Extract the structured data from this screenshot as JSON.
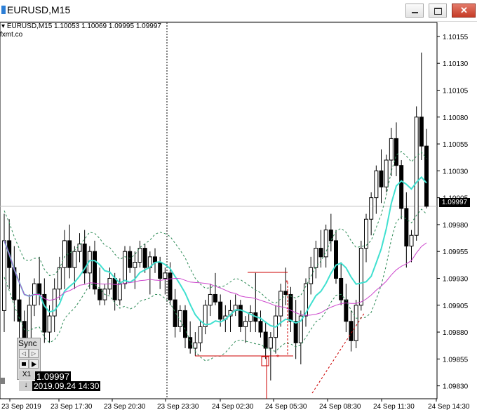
{
  "window": {
    "title": "EURUSD,M15"
  },
  "header": {
    "symbol_info": "EURUSD,M15  1.10053 1.10069 1.09995 1.09997",
    "watermark": "fxmt.co"
  },
  "price_axis": {
    "labels": [
      "1.10155",
      "1.10130",
      "1.10105",
      "1.10080",
      "1.10055",
      "1.10030",
      "1.10005",
      "1.09980",
      "1.09955",
      "1.09930",
      "1.09905",
      "1.09880",
      "1.09855",
      "1.09830"
    ],
    "current_price": "1.09997"
  },
  "time_axis": {
    "labels": [
      "23 Sep 2019",
      "23 Sep 17:30",
      "23 Sep 20:30",
      "23 Sep 23:30",
      "24 Sep 02:30",
      "24 Sep 05:30",
      "24 Sep 08:30",
      "24 Sep 11:30",
      "24 Sep 14:30"
    ]
  },
  "tester": {
    "sync_label": "Sync",
    "speed_label": "X1",
    "down_arrow": "↓",
    "crosshair_price": "1.09997",
    "crosshair_time": "2019.09.24 14:30"
  },
  "colors": {
    "bull": "#ffffff",
    "bear": "#000000",
    "ma_fast": "#40e0d0",
    "ma_slow": "#cc44cc",
    "bands": "#2e8b57",
    "orders": "#cc0000",
    "crosshair": "#000000"
  },
  "chart_data": {
    "type": "candlestick",
    "symbol": "EURUSD",
    "timeframe": "M15",
    "y_range": [
      1.09818,
      1.10168
    ],
    "last_bar": {
      "open": 1.10053,
      "high": 1.10069,
      "low": 1.09995,
      "close": 1.09997
    },
    "candles": [
      [
        1.099,
        1.0999,
        1.0988,
        1.09965
      ],
      [
        1.09965,
        1.09985,
        1.0992,
        1.0994
      ],
      [
        1.0994,
        1.0996,
        1.0989,
        1.0991
      ],
      [
        1.0991,
        1.09935,
        1.0986,
        1.0989
      ],
      [
        1.0989,
        1.099,
        1.0985,
        1.0987
      ],
      [
        1.0987,
        1.09915,
        1.0986,
        1.09905
      ],
      [
        1.09905,
        1.0993,
        1.09895,
        1.09925
      ],
      [
        1.09925,
        1.0995,
        1.09905,
        1.09915
      ],
      [
        1.09915,
        1.0993,
        1.0987,
        1.0988
      ],
      [
        1.0988,
        1.09905,
        1.0987,
        1.09895
      ],
      [
        1.09895,
        1.0993,
        1.0988,
        1.0992
      ],
      [
        1.0992,
        1.0995,
        1.0991,
        1.0994
      ],
      [
        1.0994,
        1.09975,
        1.0992,
        1.09965
      ],
      [
        1.09965,
        1.0998,
        1.0993,
        1.0994
      ],
      [
        1.0994,
        1.0996,
        1.0992,
        1.09955
      ],
      [
        1.09955,
        1.09972,
        1.09945,
        1.09962
      ],
      [
        1.09962,
        1.09975,
        1.09925,
        1.09935
      ],
      [
        1.09935,
        1.0996,
        1.0992,
        1.09955
      ],
      [
        1.09955,
        1.09965,
        1.09915,
        1.0992
      ],
      [
        1.0992,
        1.0994,
        1.09905,
        1.0991
      ],
      [
        1.0991,
        1.09925,
        1.09905,
        1.0992
      ],
      [
        1.0992,
        1.0994,
        1.09915,
        1.0993
      ],
      [
        1.0993,
        1.09935,
        1.099,
        1.0991
      ],
      [
        1.0991,
        1.0993,
        1.09905,
        1.09925
      ],
      [
        1.09925,
        1.0996,
        1.0992,
        1.09955
      ],
      [
        1.09955,
        1.0996,
        1.09935,
        1.0994
      ],
      [
        1.0994,
        1.09955,
        1.0992,
        1.09945
      ],
      [
        1.09945,
        1.09965,
        1.0994,
        1.09958
      ],
      [
        1.09958,
        1.09962,
        1.09935,
        1.0994
      ],
      [
        1.0994,
        1.09955,
        1.09915,
        1.0995
      ],
      [
        1.0995,
        1.09958,
        1.09935,
        1.09945
      ],
      [
        1.09945,
        1.0995,
        1.0992,
        1.0993
      ],
      [
        1.0993,
        1.0994,
        1.09915,
        1.09935
      ],
      [
        1.09935,
        1.09945,
        1.09905,
        1.0991
      ],
      [
        1.0991,
        1.0992,
        1.09875,
        1.09885
      ],
      [
        1.09885,
        1.09905,
        1.0988,
        1.099
      ],
      [
        1.099,
        1.09905,
        1.09865,
        1.09875
      ],
      [
        1.09875,
        1.0989,
        1.0986,
        1.09865
      ],
      [
        1.09865,
        1.0988,
        1.09858,
        1.0987
      ],
      [
        1.0987,
        1.0989,
        1.09862,
        1.09885
      ],
      [
        1.09885,
        1.0991,
        1.09878,
        1.09905
      ],
      [
        1.09905,
        1.09925,
        1.09895,
        1.09915
      ],
      [
        1.09915,
        1.09935,
        1.09905,
        1.09908
      ],
      [
        1.09908,
        1.09915,
        1.09885,
        1.09892
      ],
      [
        1.09892,
        1.09905,
        1.0988,
        1.09895
      ],
      [
        1.09895,
        1.0991,
        1.0988,
        1.099
      ],
      [
        1.099,
        1.09915,
        1.09895,
        1.09905
      ],
      [
        1.09905,
        1.0991,
        1.0988,
        1.09885
      ],
      [
        1.09885,
        1.09895,
        1.0987,
        1.0989
      ],
      [
        1.0989,
        1.09905,
        1.0988,
        1.09898
      ],
      [
        1.09898,
        1.09935,
        1.0988,
        1.0989
      ],
      [
        1.0989,
        1.099,
        1.09875,
        1.0988
      ],
      [
        1.0988,
        1.0989,
        1.09855,
        1.09865
      ],
      [
        1.09865,
        1.0988,
        1.09835,
        1.09875
      ],
      [
        1.09875,
        1.09905,
        1.0986,
        1.09895
      ],
      [
        1.09895,
        1.09925,
        1.09885,
        1.09918
      ],
      [
        1.09918,
        1.0994,
        1.09905,
        1.09915
      ],
      [
        1.09915,
        1.09922,
        1.0988,
        1.0989
      ],
      [
        1.0989,
        1.0991,
        1.09855,
        1.0987
      ],
      [
        1.0987,
        1.099,
        1.0985,
        1.09895
      ],
      [
        1.09895,
        1.0993,
        1.09885,
        1.09925
      ],
      [
        1.09925,
        1.0995,
        1.09915,
        1.0994
      ],
      [
        1.0994,
        1.09965,
        1.0993,
        1.09958
      ],
      [
        1.09958,
        1.09975,
        1.0994,
        1.0995
      ],
      [
        1.0995,
        1.0998,
        1.0994,
        1.09975
      ],
      [
        1.09975,
        1.0999,
        1.09955,
        1.09965
      ],
      [
        1.09965,
        1.09975,
        1.09925,
        1.0993
      ],
      [
        1.0993,
        1.09945,
        1.09905,
        1.0991
      ],
      [
        1.0991,
        1.09925,
        1.0988,
        1.0989
      ],
      [
        1.0989,
        1.099,
        1.09862,
        1.09872
      ],
      [
        1.09872,
        1.0991,
        1.09865,
        1.09905
      ],
      [
        1.09905,
        1.09965,
        1.099,
        1.09958
      ],
      [
        1.09958,
        1.0999,
        1.09945,
        1.09985
      ],
      [
        1.09985,
        1.1001,
        1.0997,
        1.10005
      ],
      [
        1.10005,
        1.10035,
        1.0999,
        1.1003
      ],
      [
        1.1003,
        1.1005,
        1.1,
        1.10015
      ],
      [
        1.10015,
        1.10045,
        1.1001,
        1.1004
      ],
      [
        1.1004,
        1.1007,
        1.10025,
        1.1006
      ],
      [
        1.1006,
        1.10075,
        1.10025,
        1.10035
      ],
      [
        1.10035,
        1.1004,
        1.09985,
        1.09995
      ],
      [
        1.09995,
        1.1001,
        1.0994,
        1.0996
      ],
      [
        1.0996,
        1.09975,
        1.09945,
        1.0997
      ],
      [
        1.0997,
        1.1009,
        1.09965,
        1.1008
      ],
      [
        1.1008,
        1.1014,
        1.1004,
        1.10053
      ],
      [
        1.10053,
        1.10069,
        1.09995,
        1.09997
      ]
    ],
    "x_labels": [
      "23 Sep 2019",
      "23 Sep 17:30",
      "23 Sep 20:30",
      "23 Sep 23:30",
      "24 Sep 02:30",
      "24 Sep 05:30",
      "24 Sep 08:30",
      "24 Sep 11:30",
      "24 Sep 14:30"
    ]
  }
}
